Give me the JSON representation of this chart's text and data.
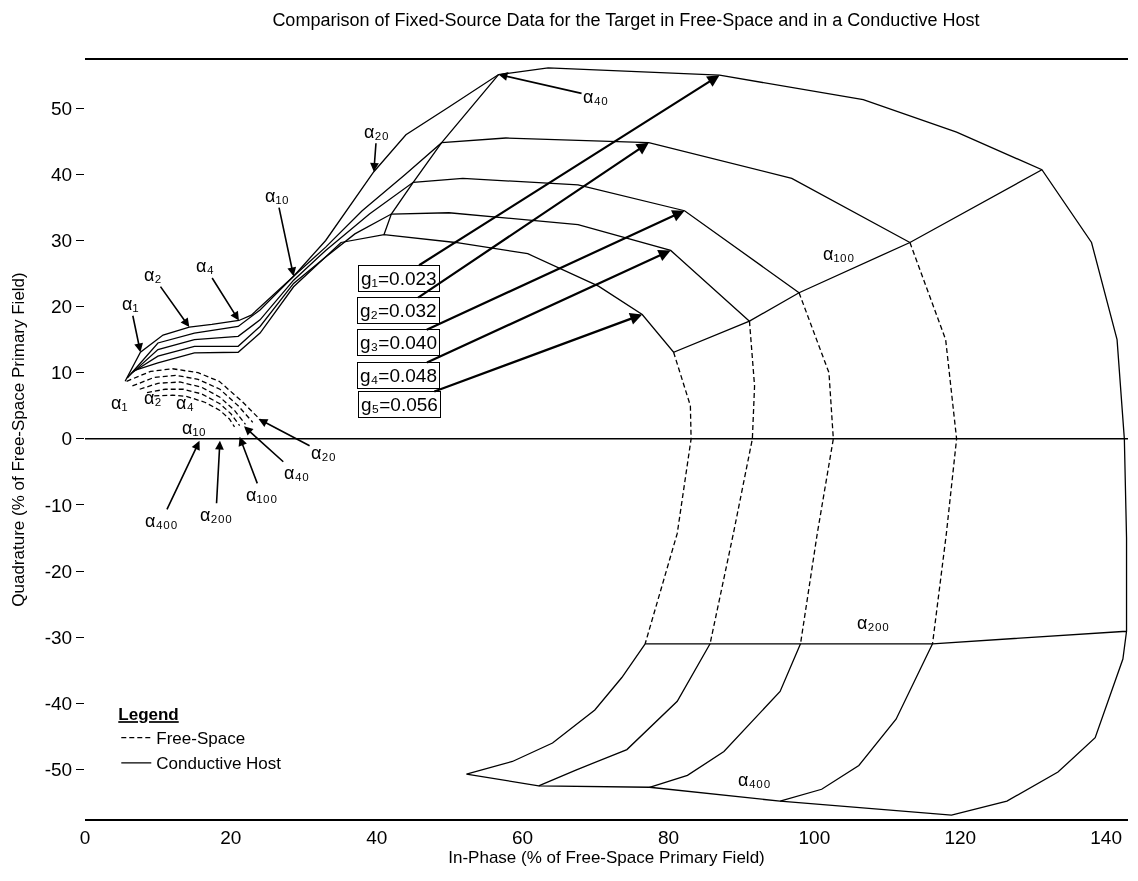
{
  "chart_data": {
    "type": "line",
    "title": "Comparison of Fixed-Source Data for the Target in Free-Space and in a Conductive Host",
    "xlabel": "In-Phase (% of Free-Space Primary Field)",
    "ylabel": "Quadrature (% of Free-Space Primary Field)",
    "legend_title": "Legend",
    "legend": "bottom left",
    "marker": "none",
    "xlim": [
      0,
      143
    ],
    "xticks": [
      0,
      20,
      40,
      60,
      80,
      100,
      120,
      140
    ],
    "ylim": [
      -57.5,
      57.3
    ],
    "yticks": [
      -50,
      -40,
      -30,
      -20,
      -10,
      0,
      10,
      20,
      30,
      40,
      50
    ],
    "ref_lines": [
      {
        "axis": "y",
        "value": 0,
        "color": "#000000"
      }
    ],
    "series": [
      {
        "name": "Free-Space",
        "color": "#000000",
        "line_style": "dashed",
        "x": [
          5.7,
          9,
          12,
          15.5,
          18.4,
          21.5,
          24.2
        ],
        "values": [
          8.7,
          10.2,
          10.6,
          10,
          8.7,
          5.7,
          2.7
        ]
      },
      {
        "color": "#000000",
        "line_style": "dashed",
        "x": [
          6.5,
          9.5,
          12.5,
          15.5,
          18.5,
          21,
          23
        ],
        "values": [
          8,
          9.3,
          9.6,
          9,
          7.5,
          5,
          2.5
        ]
      },
      {
        "color": "#000000",
        "line_style": "dashed",
        "x": [
          7.5,
          10,
          13,
          16,
          18.5,
          20.5,
          22
        ],
        "values": [
          7.5,
          8.4,
          8.6,
          7.8,
          6.3,
          4.3,
          2.2
        ]
      },
      {
        "color": "#000000",
        "line_style": "dashed",
        "x": [
          8.5,
          11,
          13.5,
          16,
          18.5,
          20,
          21.2
        ],
        "values": [
          7,
          7.5,
          7.5,
          6.8,
          5.3,
          3.8,
          2
        ]
      },
      {
        "color": "#000000",
        "line_style": "dashed",
        "x": [
          9.5,
          12,
          14,
          16.5,
          18.5,
          19.8,
          20.5
        ],
        "values": [
          6.5,
          6.6,
          6.4,
          5.5,
          4.3,
          3,
          1.8
        ]
      },
      {
        "name": "Conductive Host",
        "color": "#000000",
        "line_style": "solid",
        "x": [
          5.5,
          7.6,
          10.7,
          14.3,
          17.4,
          21.1,
          22.8,
          28.6,
          33,
          39.6,
          44,
          49.9,
          56.7,
          63.5,
          87,
          106.7,
          119.5,
          131.2,
          138,
          141.5,
          142.5,
          142.8,
          142.8,
          142.3,
          138.5,
          133.4,
          126.4,
          118.8,
          95.3,
          77.4,
          62.2,
          52.3,
          58.6,
          64.1,
          69.9,
          73.6,
          76.8,
          85.7,
          98.1,
          116.2,
          142.8
        ],
        "values": [
          8.7,
          13.1,
          15.7,
          16.9,
          17.3,
          17.9,
          18.7,
          24.6,
          30,
          40.4,
          46,
          50.2,
          55.1,
          56.1,
          55,
          51.3,
          46.4,
          40.7,
          29.7,
          15,
          0,
          -15,
          -29.1,
          -33.3,
          -45.2,
          -50.4,
          -54.8,
          -56.9,
          -54.8,
          -52.7,
          -52.5,
          -50.7,
          -48.8,
          -46,
          -41,
          -36.1,
          -31,
          -31,
          -31,
          -31,
          -29.1
        ]
      },
      {
        "color": "#000000",
        "line_style": "solid",
        "x": [
          5.8,
          10,
          15,
          21,
          24,
          28.6,
          33,
          38,
          43.9,
          48.9,
          57.7,
          77.3,
          96.9,
          113.1
        ],
        "values": [
          9.2,
          14.5,
          16,
          17,
          19.5,
          24.6,
          29,
          34.5,
          40,
          44.8,
          45.5,
          44.8,
          39.4,
          29.7
        ]
      },
      {
        "color": "#000000",
        "line_style": "solid",
        "x": [
          6.1,
          10,
          15,
          21,
          24,
          28.6,
          33,
          39,
          45,
          51.8,
          67.6,
          82.2,
          97.9
        ],
        "values": [
          9.6,
          13.5,
          15,
          15.5,
          18,
          24,
          28.5,
          34,
          38.8,
          39.4,
          38.4,
          34.5,
          22.1
        ]
      },
      {
        "color": "#000000",
        "line_style": "solid",
        "x": [
          6.4,
          10,
          15,
          21,
          24,
          28.6,
          33,
          37,
          42,
          49.9,
          67.6,
          80.3,
          91.1
        ],
        "values": [
          10,
          12.5,
          14,
          14,
          17,
          23.5,
          27.5,
          31,
          34,
          34.2,
          32.4,
          28.5,
          17.8
        ]
      },
      {
        "color": "#000000",
        "line_style": "solid",
        "x": [
          6.7,
          10,
          15,
          21,
          24,
          28.6,
          35.1,
          41,
          50.8,
          60.7,
          70.4,
          76.4,
          80.7,
          91.1,
          97.9,
          113.1,
          131.2
        ],
        "values": [
          10.3,
          11.5,
          13,
          13.1,
          16,
          23,
          29.7,
          30.9,
          29.7,
          28,
          23.1,
          18.8,
          13.1,
          17.8,
          22.1,
          29.7,
          40.7
        ]
      },
      {
        "color": "#000000",
        "line_style": "dashed",
        "x": [
          113.1,
          118,
          119.5,
          118.1,
          116.2
        ],
        "values": [
          29.7,
          15,
          0,
          -14.3,
          -31
        ]
      },
      {
        "color": "#000000",
        "line_style": "dashed",
        "x": [
          97.9,
          102,
          102.6,
          100.4,
          98.1
        ],
        "values": [
          22.1,
          10,
          0,
          -14.3,
          -31
        ]
      },
      {
        "color": "#000000",
        "line_style": "dashed",
        "x": [
          91.1,
          91.8,
          91.5,
          88.9,
          85.7
        ],
        "values": [
          17.8,
          8,
          0,
          -14.3,
          -31
        ]
      },
      {
        "color": "#000000",
        "line_style": "dashed",
        "x": [
          80.7,
          83,
          83.1,
          81.2,
          76.8
        ],
        "values": [
          13.1,
          5,
          0,
          -14.3,
          -31
        ]
      },
      {
        "color": "#000000",
        "line_style": "solid",
        "x": [
          116.2,
          111.2,
          106.1,
          101,
          95.3
        ],
        "values": [
          -31,
          -42.4,
          -49.4,
          -53,
          -54.8
        ]
      },
      {
        "color": "#000000",
        "line_style": "solid",
        "x": [
          98.1,
          95.3,
          87.6,
          82.6,
          77.4
        ],
        "values": [
          -31,
          -38.2,
          -47.3,
          -50.9,
          -52.7
        ]
      },
      {
        "color": "#000000",
        "line_style": "solid",
        "x": [
          85.7,
          81.2,
          74.3,
          67.3,
          62.2
        ],
        "values": [
          -31,
          -39.7,
          -47,
          -50.1,
          -52.5
        ]
      },
      {
        "color": "#000000",
        "line_style": "solid",
        "x": [
          41,
          42,
          45,
          48.9,
          56.7
        ],
        "values": [
          30.9,
          34,
          38.8,
          44.8,
          55.1
        ]
      }
    ],
    "annotations": [
      {
        "text": "g₁=0.023",
        "x": 87,
        "y": 55
      },
      {
        "text": "g₂=0.032",
        "x": 77.3,
        "y": 44.8
      },
      {
        "text": "g₃=0.040",
        "x": 82.2,
        "y": 34.5
      },
      {
        "text": "g₄=0.048",
        "x": 80.3,
        "y": 28.5
      },
      {
        "text": "g₅=0.056",
        "x": 76.4,
        "y": 18.8
      },
      {
        "text": "α₁",
        "x": 7.6,
        "y": 13.1
      },
      {
        "text": "α₂",
        "x": 14.3,
        "y": 16.9
      },
      {
        "text": "α₄",
        "x": 21.1,
        "y": 17.9
      },
      {
        "text": "α₁₀",
        "x": 28.6,
        "y": 24.6
      },
      {
        "text": "α₂₀",
        "x": 39.6,
        "y": 40.4
      },
      {
        "text": "α₄₀",
        "x": 56.7,
        "y": 55.1
      },
      {
        "text": "α₁₀₀",
        "x": 97.9,
        "y": 22.1
      },
      {
        "text": "α₂₀₀",
        "x": 116.2,
        "y": -31
      },
      {
        "text": "α₄₀₀",
        "x": 95.3,
        "y": -54.8
      },
      {
        "text": "α₁",
        "x": 5.7,
        "y": 8.7
      },
      {
        "text": "α₂",
        "x": 10,
        "y": 8.4
      },
      {
        "text": "α₄",
        "x": 14,
        "y": 6.4
      },
      {
        "text": "α₁₀",
        "x": 18.5,
        "y": 4.3
      },
      {
        "text": "α₂₀",
        "x": 23.8,
        "y": 3
      },
      {
        "text": "α₄₀",
        "x": 21.8,
        "y": 1.9
      },
      {
        "text": "α₁₀₀",
        "x": 21.2,
        "y": 0.3
      },
      {
        "text": "α₂₀₀",
        "x": 18.5,
        "y": -0.3
      },
      {
        "text": "α₄₀₀",
        "x": 15.7,
        "y": -0.3
      }
    ]
  }
}
